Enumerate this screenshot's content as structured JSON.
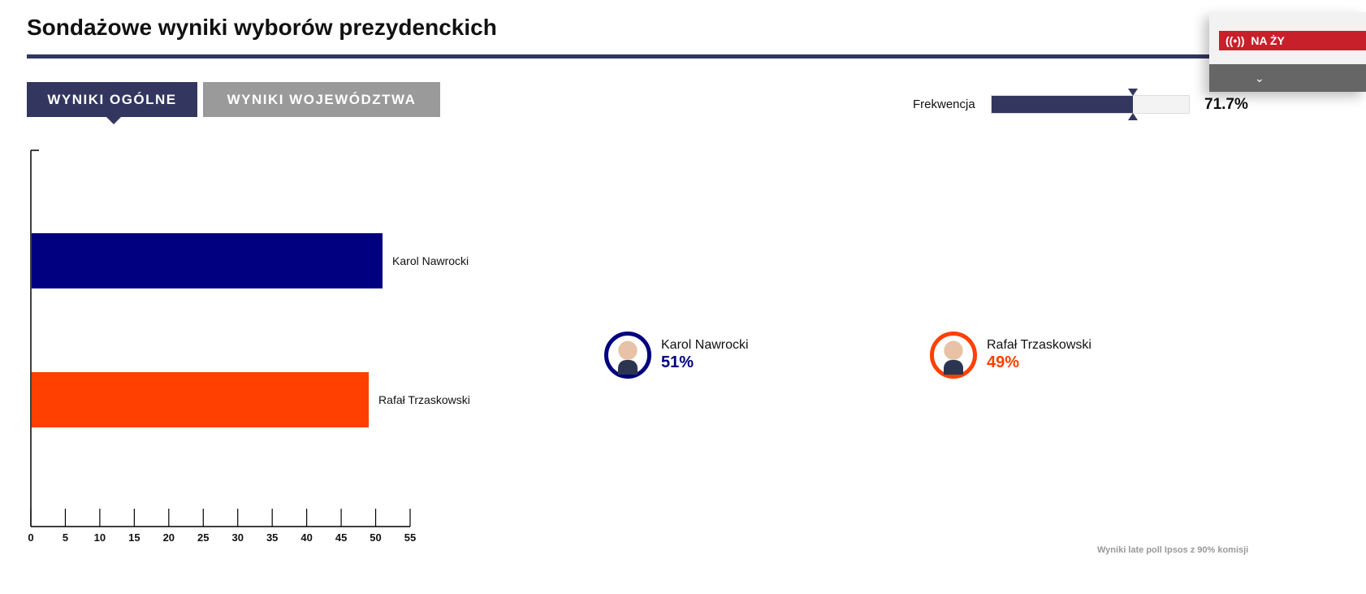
{
  "header": {
    "title": "Sondażowe wyniki wyborów prezydenckich"
  },
  "tabs": [
    {
      "label": "WYNIKI OGÓLNE",
      "active": true
    },
    {
      "label": "WYNIKI WOJEWÓDZTWA",
      "active": false
    }
  ],
  "turnout": {
    "label": "Frekwencja",
    "value": 71.7,
    "value_text": "71.7%",
    "color": "#33365e"
  },
  "live_panel": {
    "label": "NA ŻY",
    "icon": "broadcast-icon",
    "dropdown_icon": "chevron-down-icon"
  },
  "candidates": [
    {
      "name": "Karol Nawrocki",
      "pct_text": "51%",
      "color": "#000080"
    },
    {
      "name": "Rafał Trzaskowski",
      "pct_text": "49%",
      "color": "#ff4000"
    }
  ],
  "footnote": "Wyniki late poll Ipsos z 90% komisji",
  "chart_data": {
    "type": "bar",
    "orientation": "horizontal",
    "categories": [
      "Karol Nawrocki",
      "Rafał Trzaskowski"
    ],
    "values": [
      51,
      49
    ],
    "colors": [
      "#000080",
      "#ff4000"
    ],
    "xlim": [
      0,
      55
    ],
    "xticks": [
      0,
      5,
      10,
      15,
      20,
      25,
      30,
      35,
      40,
      45,
      50,
      55
    ],
    "title": "",
    "xlabel": "",
    "ylabel": "",
    "grid": false
  }
}
